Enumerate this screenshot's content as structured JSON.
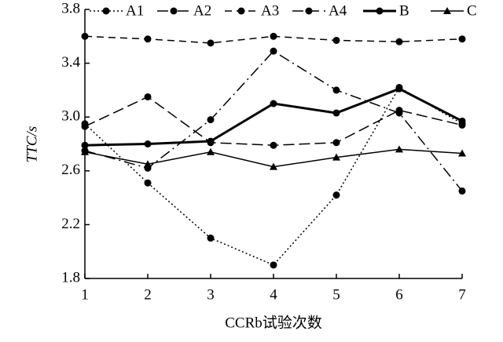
{
  "chart_data": {
    "type": "line",
    "x_label": "CCRb试验次数",
    "y_label": "TTC/s",
    "x": [
      1,
      2,
      3,
      4,
      5,
      6,
      7
    ],
    "xlim": [
      1,
      7
    ],
    "xticks": [
      1,
      2,
      3,
      4,
      5,
      6,
      7
    ],
    "ylim": [
      1.8,
      3.8
    ],
    "yticks": [
      1.8,
      2.2,
      2.6,
      {
        "value": 3,
        "label": "3.0"
      },
      3.4,
      3.8
    ],
    "legend": "top",
    "series": [
      {
        "name": "A1",
        "color": "#000000",
        "style": "dotted",
        "marker": "circle",
        "values": [
          2.95,
          2.51,
          2.1,
          1.9,
          2.42,
          3.22,
          2.95
        ]
      },
      {
        "name": "A2",
        "color": "#000000",
        "style": "dashdot",
        "marker": "circle",
        "values": [
          2.75,
          2.62,
          2.98,
          3.49,
          3.2,
          3.03,
          2.45
        ]
      },
      {
        "name": "A3",
        "color": "#000000",
        "style": "dashed",
        "marker": "circle",
        "values": [
          3.6,
          3.58,
          3.55,
          3.6,
          3.57,
          3.56,
          3.58
        ]
      },
      {
        "name": "A4",
        "color": "#000000",
        "style": "longdash",
        "marker": "circle",
        "values": [
          2.93,
          3.15,
          2.81,
          2.79,
          2.81,
          3.05,
          2.94
        ]
      },
      {
        "name": "B",
        "color": "#000000",
        "style": "bold",
        "marker": "circle",
        "values": [
          2.79,
          2.8,
          2.82,
          3.1,
          3.03,
          3.21,
          2.97
        ]
      },
      {
        "name": "C",
        "color": "#000000",
        "style": "solid",
        "marker": "triangle",
        "values": [
          2.74,
          2.65,
          2.74,
          2.63,
          2.7,
          2.76,
          2.73
        ]
      }
    ]
  }
}
